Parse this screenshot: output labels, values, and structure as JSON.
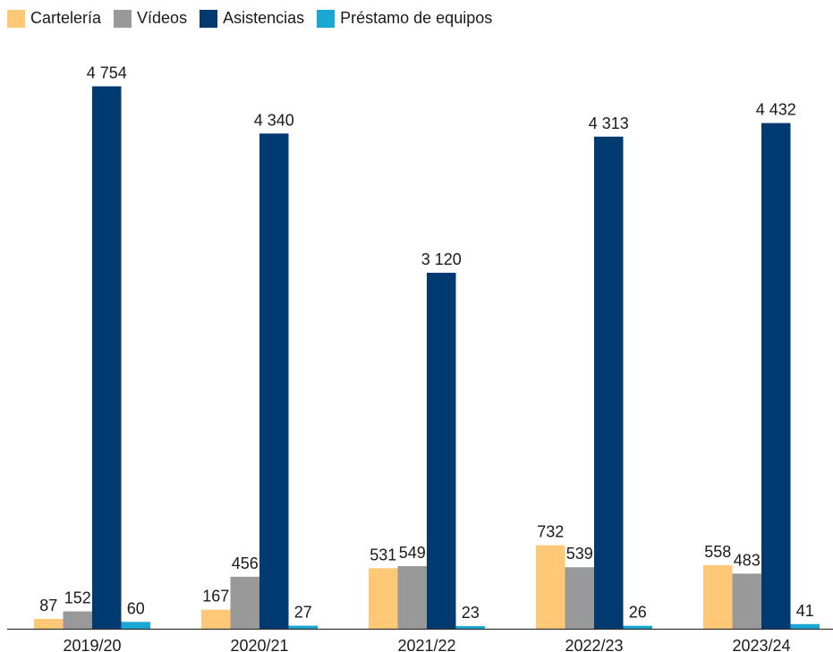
{
  "chart_data": {
    "type": "bar",
    "title": "",
    "xlabel": "",
    "ylabel": "",
    "ylim": [
      0,
      4900
    ],
    "grid": false,
    "legend_position": "top-left",
    "categories": [
      "2019/20",
      "2020/21",
      "2021/22",
      "2022/23",
      "2023/24"
    ],
    "series": [
      {
        "name": "Cartelería",
        "color": "#FFC877",
        "values": [
          87,
          167,
          531,
          732,
          558
        ],
        "labels": [
          "87",
          "167",
          "531",
          "732",
          "558"
        ]
      },
      {
        "name": "Vídeos",
        "color": "#999999",
        "values": [
          152,
          456,
          549,
          539,
          483
        ],
        "labels": [
          "152",
          "456",
          "549",
          "539",
          "483"
        ]
      },
      {
        "name": "Asistencias",
        "color": "#003A70",
        "values": [
          4754,
          4340,
          3120,
          4313,
          4432
        ],
        "labels": [
          "4 754",
          "4 340",
          "3 120",
          "4 313",
          "4 432"
        ]
      },
      {
        "name": "Préstamo de equipos",
        "color": "#1BA7D4",
        "values": [
          60,
          27,
          23,
          26,
          41
        ],
        "labels": [
          "60",
          "27",
          "23",
          "26",
          "41"
        ]
      }
    ]
  }
}
